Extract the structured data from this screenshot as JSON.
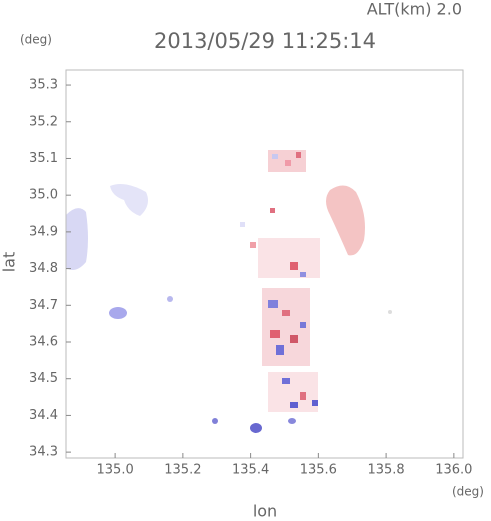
{
  "chart_data": {
    "type": "map",
    "title": "2013/05/29 11:25:14",
    "subtitle": "ALT(km) 2.0",
    "y_unit": "(deg)",
    "x_unit": "(deg)",
    "x_label": "lon",
    "y_label": "lat",
    "xlim": [
      134.855,
      136.027
    ],
    "ylim": [
      34.284,
      35.341
    ],
    "xticks": [
      {
        "value": 135,
        "label": "135.0"
      },
      135.2,
      135.4,
      135.6,
      135.8,
      {
        "value": 136,
        "label": "136.0"
      }
    ],
    "yticks": [
      34.3,
      34.4,
      34.5,
      34.6,
      34.7,
      34.8,
      34.9,
      {
        "value": 35,
        "label": "35.0"
      },
      35.1,
      35.2,
      35.3
    ]
  }
}
